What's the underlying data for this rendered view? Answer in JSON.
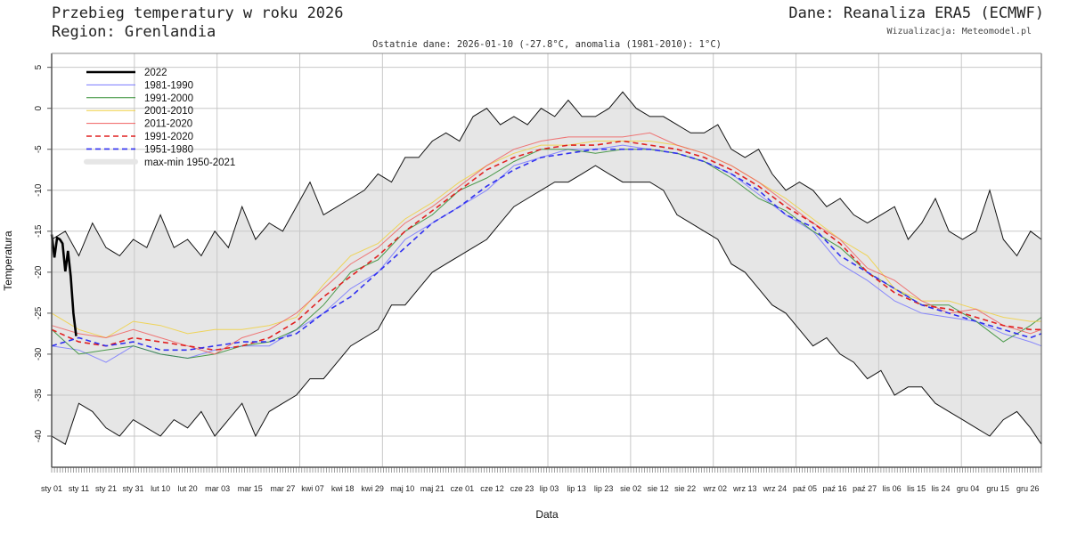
{
  "header": {
    "title": "Przebieg temperatury w roku 2026",
    "region": "Region: Grenlandia",
    "source": "Dane: Reanaliza ERA5 (ECMWF)",
    "credit": "Wizualizacja: Meteomodel.pl",
    "subtitle": "Ostatnie dane: 2026-01-10 (-27.8°C, anomalia (1981-2010): 1°C)"
  },
  "chart_data": {
    "type": "line",
    "xlabel": "Data",
    "ylabel": "Temperatura",
    "ylim": [
      -43.8,
      6.7
    ],
    "xlim_day_of_year": [
      1,
      365
    ],
    "grid": true,
    "legend_placement": "top-left",
    "y_ticks": [
      5,
      0,
      -5,
      -10,
      -15,
      -20,
      -25,
      -30,
      -35,
      -40
    ],
    "y_tick_labels": [
      "5",
      "0",
      "-5",
      "-10",
      "-15",
      "-20",
      "-25",
      "-30",
      "-35",
      "-40"
    ],
    "x_ticks": [
      {
        "day": 1,
        "label": "sty 01"
      },
      {
        "day": 11,
        "label": "sty 11"
      },
      {
        "day": 21,
        "label": "sty 21"
      },
      {
        "day": 31,
        "label": "sty 31"
      },
      {
        "day": 41,
        "label": "lut 10"
      },
      {
        "day": 51,
        "label": "lut 20"
      },
      {
        "day": 62,
        "label": "mar 03"
      },
      {
        "day": 74,
        "label": "mar 15"
      },
      {
        "day": 86,
        "label": "mar 27"
      },
      {
        "day": 97,
        "label": "kwi 07"
      },
      {
        "day": 108,
        "label": "kwi 18"
      },
      {
        "day": 119,
        "label": "kwi 29"
      },
      {
        "day": 130,
        "label": "maj 10"
      },
      {
        "day": 141,
        "label": "maj 21"
      },
      {
        "day": 152,
        "label": "cze 01"
      },
      {
        "day": 163,
        "label": "cze 12"
      },
      {
        "day": 174,
        "label": "cze 23"
      },
      {
        "day": 184,
        "label": "lip 03"
      },
      {
        "day": 194,
        "label": "lip 13"
      },
      {
        "day": 204,
        "label": "lip 23"
      },
      {
        "day": 214,
        "label": "sie 02"
      },
      {
        "day": 224,
        "label": "sie 12"
      },
      {
        "day": 234,
        "label": "sie 22"
      },
      {
        "day": 245,
        "label": "wrz 02"
      },
      {
        "day": 256,
        "label": "wrz 13"
      },
      {
        "day": 267,
        "label": "wrz 24"
      },
      {
        "day": 278,
        "label": "paź 05"
      },
      {
        "day": 289,
        "label": "paź 16"
      },
      {
        "day": 300,
        "label": "paź 27"
      },
      {
        "day": 310,
        "label": "lis 06"
      },
      {
        "day": 319,
        "label": "lis 15"
      },
      {
        "day": 328,
        "label": "lis 24"
      },
      {
        "day": 338,
        "label": "gru 04"
      },
      {
        "day": 349,
        "label": "gru 15"
      },
      {
        "day": 360,
        "label": "gru 26"
      }
    ],
    "band": {
      "name": "max-min 1950-2021",
      "color": "#e6e6e6",
      "x": [
        1,
        6,
        11,
        16,
        21,
        26,
        31,
        36,
        41,
        46,
        51,
        56,
        61,
        66,
        71,
        76,
        81,
        86,
        91,
        96,
        101,
        106,
        111,
        116,
        121,
        126,
        131,
        136,
        141,
        146,
        151,
        156,
        161,
        166,
        171,
        176,
        181,
        186,
        191,
        196,
        201,
        206,
        211,
        216,
        221,
        226,
        231,
        236,
        241,
        246,
        251,
        256,
        261,
        266,
        271,
        276,
        281,
        286,
        291,
        296,
        301,
        306,
        311,
        316,
        321,
        326,
        331,
        336,
        341,
        346,
        351,
        356,
        361,
        365
      ],
      "max": [
        -16,
        -15,
        -18,
        -14,
        -17,
        -18,
        -16,
        -17,
        -13,
        -17,
        -16,
        -18,
        -15,
        -17,
        -12,
        -16,
        -14,
        -15,
        -12,
        -9,
        -13,
        -12,
        -11,
        -10,
        -8,
        -9,
        -6,
        -6,
        -4,
        -3,
        -4,
        -1,
        0,
        -2,
        -1,
        -2,
        0,
        -1,
        1,
        -1,
        -1,
        0,
        2,
        0,
        -1,
        -1,
        -2,
        -3,
        -3,
        -2,
        -5,
        -6,
        -5,
        -8,
        -10,
        -9,
        -10,
        -12,
        -11,
        -13,
        -14,
        -13,
        -12,
        -16,
        -14,
        -11,
        -15,
        -16,
        -15,
        -10,
        -16,
        -18,
        -15,
        -16
      ],
      "min": [
        -40,
        -41,
        -36,
        -37,
        -39,
        -40,
        -38,
        -39,
        -40,
        -38,
        -39,
        -37,
        -40,
        -38,
        -36,
        -40,
        -37,
        -36,
        -35,
        -33,
        -33,
        -31,
        -29,
        -28,
        -27,
        -24,
        -24,
        -22,
        -20,
        -19,
        -18,
        -17,
        -16,
        -14,
        -12,
        -11,
        -10,
        -9,
        -9,
        -8,
        -7,
        -8,
        -9,
        -9,
        -9,
        -10,
        -13,
        -14,
        -15,
        -16,
        -19,
        -20,
        -22,
        -24,
        -25,
        -27,
        -29,
        -28,
        -30,
        -31,
        -33,
        -32,
        -35,
        -34,
        -34,
        -36,
        -37,
        -38,
        -39,
        -40,
        -38,
        -37,
        -39,
        -41
      ]
    },
    "x": [
      1,
      11,
      21,
      31,
      41,
      51,
      61,
      71,
      81,
      91,
      101,
      111,
      121,
      131,
      141,
      151,
      161,
      171,
      181,
      191,
      201,
      211,
      221,
      231,
      241,
      251,
      261,
      271,
      281,
      291,
      301,
      311,
      321,
      331,
      341,
      351,
      361,
      365
    ],
    "series": [
      {
        "name": "1981-1990",
        "color": "#7777ff",
        "dash": false,
        "width": 1,
        "values": [
          -29,
          -29.5,
          -31,
          -29,
          -30,
          -30.5,
          -29.5,
          -29,
          -29,
          -27,
          -25,
          -22,
          -20,
          -16,
          -14,
          -12,
          -10,
          -7,
          -6,
          -5,
          -5,
          -4.5,
          -5,
          -5.5,
          -6.5,
          -8,
          -10.5,
          -13,
          -15,
          -19,
          -21,
          -23.5,
          -25,
          -25.5,
          -26,
          -27.5,
          -28.5,
          -29
        ]
      },
      {
        "name": "1991-2000",
        "color": "#2e8b2e",
        "dash": false,
        "width": 1,
        "values": [
          -27,
          -30,
          -29.5,
          -29,
          -30,
          -30.5,
          -30,
          -29,
          -28.5,
          -27,
          -24,
          -20,
          -18.5,
          -15,
          -13,
          -10,
          -8.5,
          -6.5,
          -5,
          -5,
          -5.5,
          -5,
          -5,
          -5.5,
          -6.5,
          -8.5,
          -11,
          -12.5,
          -15,
          -17,
          -20,
          -22,
          -24,
          -24,
          -26,
          -28.5,
          -26.5,
          -25.5
        ]
      },
      {
        "name": "2001-2010",
        "color": "#f0d040",
        "dash": false,
        "width": 1,
        "values": [
          -25,
          -27,
          -28,
          -26,
          -26.5,
          -27.5,
          -27,
          -27,
          -26.5,
          -25.5,
          -21.5,
          -18,
          -16.5,
          -13.5,
          -11.5,
          -9,
          -7,
          -5.5,
          -4.5,
          -4.5,
          -4,
          -4,
          -4,
          -4.5,
          -5.5,
          -7,
          -9,
          -11,
          -13.5,
          -16,
          -18,
          -22,
          -23.5,
          -23.5,
          -24.5,
          -25.5,
          -26,
          -26
        ]
      },
      {
        "name": "2011-2020",
        "color": "#f06060",
        "dash": false,
        "width": 1,
        "values": [
          -26.5,
          -27.5,
          -28,
          -27,
          -28,
          -29,
          -30,
          -28,
          -27,
          -25,
          -22,
          -19,
          -17,
          -14,
          -12,
          -9.5,
          -7,
          -5,
          -4,
          -3.5,
          -3.5,
          -3.5,
          -3,
          -4.5,
          -5.5,
          -7,
          -9,
          -11.5,
          -14,
          -16,
          -19.5,
          -21,
          -23.5,
          -25,
          -24.5,
          -26.5,
          -27.5,
          -27
        ]
      },
      {
        "name": "1991-2020",
        "color": "#e02020",
        "dash": true,
        "width": 1.6,
        "values": [
          -27,
          -28.5,
          -29,
          -28,
          -28.5,
          -29,
          -29.5,
          -29,
          -28,
          -26,
          -23,
          -20.5,
          -18,
          -15,
          -12.5,
          -10,
          -7.5,
          -6,
          -5,
          -4.5,
          -4.5,
          -4,
          -4.5,
          -5,
          -6,
          -7.5,
          -9.5,
          -12,
          -14,
          -16.5,
          -20,
          -22.5,
          -24,
          -24.5,
          -25.5,
          -26.5,
          -27,
          -27
        ]
      },
      {
        "name": "1951-1980",
        "color": "#3030f0",
        "dash": true,
        "width": 1.6,
        "values": [
          -29,
          -28,
          -29,
          -28.5,
          -29.5,
          -29.5,
          -29,
          -28.5,
          -28.5,
          -27.5,
          -25,
          -23,
          -20,
          -17,
          -14,
          -12,
          -9.5,
          -7.5,
          -6,
          -5.5,
          -5,
          -5,
          -5,
          -5.5,
          -6.5,
          -8,
          -10,
          -13,
          -14.5,
          -18,
          -20,
          -22,
          -24,
          -25,
          -26,
          -27,
          -28,
          -27.5
        ]
      }
    ],
    "current": {
      "name": "2022",
      "color": "#000000",
      "x": [
        1,
        2,
        3,
        4,
        5,
        6,
        7,
        8,
        9,
        10
      ],
      "values": [
        -15.4,
        -18.2,
        -15.8,
        -16.0,
        -16.5,
        -19.9,
        -17.4,
        -20.5,
        -25.0,
        -27.8
      ]
    }
  }
}
